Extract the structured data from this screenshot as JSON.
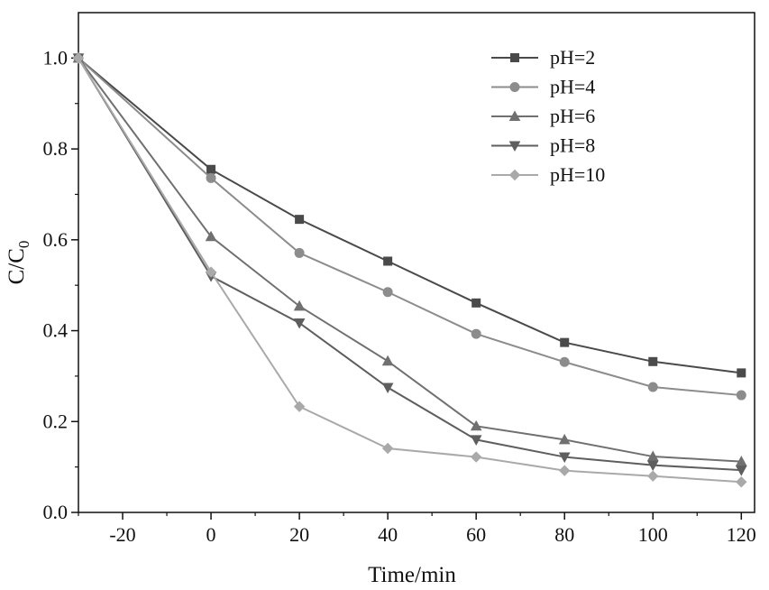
{
  "chart_data": {
    "type": "line",
    "title": "",
    "xlabel": "Time/min",
    "ylabel_main": "C/C",
    "ylabel_sub": "0",
    "xlim": [
      -30,
      123
    ],
    "ylim": [
      0,
      1.1
    ],
    "xticks": [
      -20,
      0,
      20,
      40,
      60,
      80,
      100,
      120
    ],
    "xtick_labels": [
      "-20",
      "0",
      "20",
      "40",
      "60",
      "80",
      "100",
      "120"
    ],
    "xminor": [
      -30,
      -10,
      10,
      30,
      50,
      70,
      90,
      110
    ],
    "yticks": [
      0.0,
      0.2,
      0.4,
      0.6,
      0.8,
      1.0
    ],
    "ytick_labels": [
      "0.0",
      "0.2",
      "0.4",
      "0.6",
      "0.8",
      "1.0"
    ],
    "yminor": [
      0.1,
      0.3,
      0.5,
      0.7,
      0.9
    ],
    "grid": false,
    "legend_position": "top-right",
    "x": [
      -30,
      0,
      20,
      40,
      60,
      80,
      100,
      120
    ],
    "series": [
      {
        "name": "pH=2",
        "marker": "square",
        "color": "#4a4a4a",
        "values": [
          1.0,
          0.755,
          0.645,
          0.553,
          0.461,
          0.374,
          0.332,
          0.307
        ]
      },
      {
        "name": "pH=4",
        "marker": "circle",
        "color": "#8c8c8c",
        "values": [
          1.0,
          0.736,
          0.571,
          0.485,
          0.393,
          0.331,
          0.276,
          0.258
        ]
      },
      {
        "name": "pH=6",
        "marker": "triangle-up",
        "color": "#707070",
        "values": [
          1.0,
          0.607,
          0.454,
          0.333,
          0.19,
          0.16,
          0.123,
          0.112
        ]
      },
      {
        "name": "pH=8",
        "marker": "triangle-down",
        "color": "#5e5e5e",
        "values": [
          1.0,
          0.52,
          0.417,
          0.275,
          0.16,
          0.122,
          0.104,
          0.093
        ]
      },
      {
        "name": "pH=10",
        "marker": "diamond",
        "color": "#a9a9a9",
        "values": [
          1.0,
          0.529,
          0.233,
          0.141,
          0.122,
          0.092,
          0.08,
          0.067
        ]
      }
    ]
  }
}
